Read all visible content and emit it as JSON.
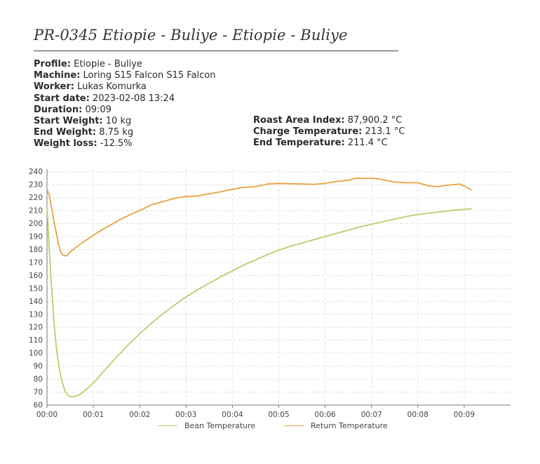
{
  "report": {
    "title": "PR-0345 Etiopie - Buliye - Etiopie - Buliye"
  },
  "info_left": [
    {
      "label": "Profile:",
      "value": "Etiopie - Buliye"
    },
    {
      "label": "Machine:",
      "value": "Loring S15 Falcon S15 Falcon"
    },
    {
      "label": "Worker:",
      "value": "Lukas Komurka"
    },
    {
      "label": "Start date:",
      "value": "2023-02-08 13:24"
    },
    {
      "label": "Duration:",
      "value": "09:09"
    },
    {
      "label": "Start Weight:",
      "value": "10 kg"
    },
    {
      "label": "End Weight:",
      "value": "8.75 kg"
    },
    {
      "label": "Weight loss:",
      "value": "-12.5%"
    }
  ],
  "info_right": [
    {
      "label": "Roast Area Index:",
      "value": "87,900.2 °C"
    },
    {
      "label": "Charge Temperature:",
      "value": "213.1 °C"
    },
    {
      "label": "End Temperature:",
      "value": "211.4 °C"
    }
  ],
  "colors": {
    "bean": "#b5d16a",
    "return": "#e8a23c",
    "axis": "#777777",
    "grid": "#e3e3e3",
    "tick_text": "#444444"
  },
  "chart_data": {
    "type": "line",
    "xlabel": "",
    "ylabel": "",
    "xlim": [
      0,
      10
    ],
    "ylim": [
      60,
      242
    ],
    "grid": true,
    "legend_position": "bottom",
    "x_ticks": [
      {
        "v": 0,
        "label": "00:00"
      },
      {
        "v": 1,
        "label": "00:01"
      },
      {
        "v": 2,
        "label": "00:02"
      },
      {
        "v": 3,
        "label": "00:03"
      },
      {
        "v": 4,
        "label": "00:04"
      },
      {
        "v": 5,
        "label": "00:05"
      },
      {
        "v": 6,
        "label": "00:06"
      },
      {
        "v": 7,
        "label": "00:07"
      },
      {
        "v": 8,
        "label": "00:08"
      },
      {
        "v": 9,
        "label": "00:09"
      }
    ],
    "y_ticks": [
      60,
      70,
      80,
      90,
      100,
      110,
      120,
      130,
      140,
      150,
      160,
      170,
      180,
      190,
      200,
      210,
      220,
      230,
      240
    ],
    "series": [
      {
        "name": "Bean Temperature",
        "color": "#b5d16a",
        "points": [
          [
            0,
            213
          ],
          [
            0.05,
            180
          ],
          [
            0.1,
            150
          ],
          [
            0.15,
            125
          ],
          [
            0.2,
            105
          ],
          [
            0.25,
            92
          ],
          [
            0.3,
            82
          ],
          [
            0.35,
            75
          ],
          [
            0.4,
            70
          ],
          [
            0.45,
            67.5
          ],
          [
            0.5,
            66.5
          ],
          [
            0.55,
            66.3
          ],
          [
            0.6,
            66.5
          ],
          [
            0.7,
            68
          ],
          [
            0.8,
            70.5
          ],
          [
            1.0,
            77
          ],
          [
            1.2,
            85
          ],
          [
            1.5,
            97
          ],
          [
            1.75,
            106.5
          ],
          [
            2.0,
            115
          ],
          [
            2.25,
            123
          ],
          [
            2.5,
            130.5
          ],
          [
            2.75,
            137
          ],
          [
            3.0,
            143.5
          ],
          [
            3.25,
            149
          ],
          [
            3.5,
            154
          ],
          [
            3.75,
            159
          ],
          [
            4.0,
            163.5
          ],
          [
            4.25,
            168
          ],
          [
            4.5,
            172
          ],
          [
            4.75,
            176
          ],
          [
            5.0,
            179.5
          ],
          [
            5.25,
            182.5
          ],
          [
            5.5,
            185
          ],
          [
            5.75,
            187.5
          ],
          [
            6.0,
            190
          ],
          [
            6.25,
            192.5
          ],
          [
            6.5,
            195
          ],
          [
            6.75,
            197.5
          ],
          [
            7.0,
            199.5
          ],
          [
            7.25,
            201.5
          ],
          [
            7.5,
            203.5
          ],
          [
            7.75,
            205.5
          ],
          [
            8.0,
            207
          ],
          [
            8.25,
            208.2
          ],
          [
            8.5,
            209.2
          ],
          [
            8.75,
            210.2
          ],
          [
            9.0,
            211
          ],
          [
            9.15,
            211.4
          ]
        ]
      },
      {
        "name": "Return Temperature",
        "color": "#e8a23c",
        "points": [
          [
            0,
            226
          ],
          [
            0.05,
            222
          ],
          [
            0.1,
            212
          ],
          [
            0.15,
            202
          ],
          [
            0.2,
            193
          ],
          [
            0.25,
            184
          ],
          [
            0.3,
            178
          ],
          [
            0.35,
            175.5
          ],
          [
            0.42,
            175
          ],
          [
            0.5,
            178
          ],
          [
            0.6,
            181
          ],
          [
            0.75,
            185
          ],
          [
            0.9,
            188.5
          ],
          [
            1.0,
            191
          ],
          [
            1.2,
            195.5
          ],
          [
            1.4,
            199.5
          ],
          [
            1.6,
            203.5
          ],
          [
            1.8,
            207
          ],
          [
            2.0,
            210
          ],
          [
            2.25,
            214.5
          ],
          [
            2.5,
            217
          ],
          [
            2.75,
            219.5
          ],
          [
            3.0,
            221
          ],
          [
            3.25,
            221.3
          ],
          [
            3.5,
            223
          ],
          [
            3.75,
            224.5
          ],
          [
            4.0,
            226.5
          ],
          [
            4.25,
            228
          ],
          [
            4.5,
            228.5
          ],
          [
            4.75,
            230.5
          ],
          [
            5.0,
            231
          ],
          [
            5.25,
            230.8
          ],
          [
            5.5,
            230.5
          ],
          [
            5.75,
            230.3
          ],
          [
            6.0,
            231
          ],
          [
            6.25,
            232.5
          ],
          [
            6.5,
            233.5
          ],
          [
            6.65,
            235
          ],
          [
            7.0,
            235
          ],
          [
            7.15,
            234.5
          ],
          [
            7.5,
            232
          ],
          [
            7.75,
            231.5
          ],
          [
            8.0,
            231.5
          ],
          [
            8.25,
            229
          ],
          [
            8.45,
            228.5
          ],
          [
            8.6,
            229.5
          ],
          [
            8.9,
            230.5
          ],
          [
            9.0,
            229
          ],
          [
            9.15,
            226
          ]
        ]
      }
    ]
  }
}
